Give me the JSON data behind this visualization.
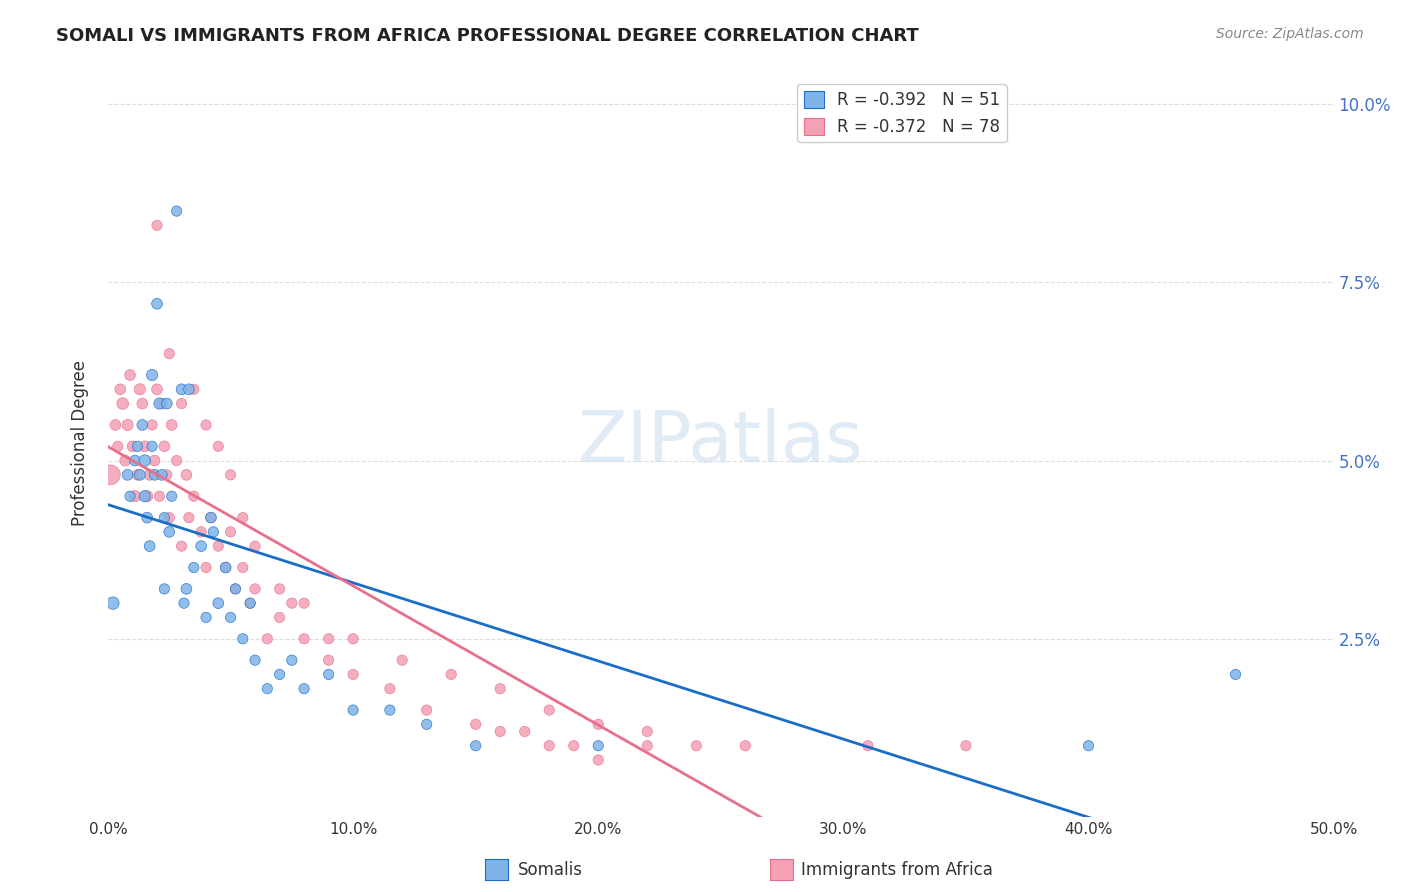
{
  "title": "SOMALI VS IMMIGRANTS FROM AFRICA PROFESSIONAL DEGREE CORRELATION CHART",
  "source": "Source: ZipAtlas.com",
  "xlabel_ticks": [
    "0.0%",
    "10.0%",
    "20.0%",
    "30.0%",
    "40.0%",
    "50.0%"
  ],
  "xlabel_vals": [
    0.0,
    0.1,
    0.2,
    0.3,
    0.4,
    0.5
  ],
  "ylabel": "Professional Degree",
  "ylabel_right_ticks": [
    "10.0%",
    "7.5%",
    "5.0%",
    "2.5%"
  ],
  "ylabel_right_vals": [
    0.1,
    0.075,
    0.05,
    0.025
  ],
  "xlim": [
    0.0,
    0.5
  ],
  "ylim": [
    0.0,
    0.105
  ],
  "legend_blue_R": "-0.392",
  "legend_blue_N": "51",
  "legend_pink_R": "-0.372",
  "legend_pink_N": "78",
  "somali_color": "#7EB3E8",
  "africa_color": "#F4A0B5",
  "trendline_blue": "#1A6EC7",
  "trendline_pink": "#E8708A",
  "background_color": "#FFFFFF",
  "grid_color": "#DDDDDD",
  "somalis_x": [
    0.002,
    0.008,
    0.009,
    0.011,
    0.012,
    0.013,
    0.014,
    0.015,
    0.015,
    0.016,
    0.017,
    0.018,
    0.018,
    0.019,
    0.02,
    0.021,
    0.022,
    0.023,
    0.023,
    0.024,
    0.025,
    0.026,
    0.028,
    0.03,
    0.031,
    0.032,
    0.033,
    0.035,
    0.038,
    0.04,
    0.042,
    0.043,
    0.045,
    0.048,
    0.05,
    0.052,
    0.055,
    0.058,
    0.06,
    0.065,
    0.07,
    0.075,
    0.08,
    0.09,
    0.1,
    0.115,
    0.13,
    0.15,
    0.2,
    0.4,
    0.46
  ],
  "somalis_y": [
    0.03,
    0.048,
    0.045,
    0.05,
    0.052,
    0.048,
    0.055,
    0.05,
    0.045,
    0.042,
    0.038,
    0.062,
    0.052,
    0.048,
    0.072,
    0.058,
    0.048,
    0.032,
    0.042,
    0.058,
    0.04,
    0.045,
    0.085,
    0.06,
    0.03,
    0.032,
    0.06,
    0.035,
    0.038,
    0.028,
    0.042,
    0.04,
    0.03,
    0.035,
    0.028,
    0.032,
    0.025,
    0.03,
    0.022,
    0.018,
    0.02,
    0.022,
    0.018,
    0.02,
    0.015,
    0.015,
    0.013,
    0.01,
    0.01,
    0.01,
    0.02
  ],
  "somalis_size": [
    80,
    60,
    55,
    60,
    55,
    60,
    60,
    70,
    65,
    60,
    60,
    65,
    55,
    60,
    60,
    65,
    60,
    55,
    55,
    60,
    60,
    55,
    55,
    60,
    55,
    60,
    60,
    55,
    60,
    55,
    60,
    55,
    60,
    60,
    55,
    55,
    55,
    55,
    55,
    55,
    55,
    55,
    55,
    55,
    55,
    55,
    55,
    55,
    55,
    55,
    55
  ],
  "africa_x": [
    0.001,
    0.003,
    0.004,
    0.005,
    0.006,
    0.007,
    0.008,
    0.009,
    0.01,
    0.011,
    0.012,
    0.013,
    0.014,
    0.015,
    0.016,
    0.017,
    0.018,
    0.019,
    0.02,
    0.021,
    0.022,
    0.023,
    0.024,
    0.025,
    0.026,
    0.028,
    0.03,
    0.032,
    0.033,
    0.035,
    0.038,
    0.04,
    0.042,
    0.045,
    0.048,
    0.05,
    0.052,
    0.055,
    0.058,
    0.06,
    0.065,
    0.07,
    0.075,
    0.08,
    0.09,
    0.1,
    0.115,
    0.13,
    0.15,
    0.16,
    0.17,
    0.18,
    0.19,
    0.2,
    0.22,
    0.24,
    0.26,
    0.31,
    0.35,
    0.02,
    0.025,
    0.03,
    0.035,
    0.04,
    0.045,
    0.05,
    0.055,
    0.06,
    0.07,
    0.08,
    0.09,
    0.1,
    0.12,
    0.14,
    0.16,
    0.18,
    0.2,
    0.22
  ],
  "africa_y": [
    0.048,
    0.055,
    0.052,
    0.06,
    0.058,
    0.05,
    0.055,
    0.062,
    0.052,
    0.045,
    0.048,
    0.06,
    0.058,
    0.052,
    0.045,
    0.048,
    0.055,
    0.05,
    0.06,
    0.045,
    0.058,
    0.052,
    0.048,
    0.042,
    0.055,
    0.05,
    0.038,
    0.048,
    0.042,
    0.045,
    0.04,
    0.035,
    0.042,
    0.038,
    0.035,
    0.04,
    0.032,
    0.035,
    0.03,
    0.032,
    0.025,
    0.028,
    0.03,
    0.025,
    0.022,
    0.02,
    0.018,
    0.015,
    0.013,
    0.012,
    0.012,
    0.01,
    0.01,
    0.008,
    0.01,
    0.01,
    0.01,
    0.01,
    0.01,
    0.083,
    0.065,
    0.058,
    0.06,
    0.055,
    0.052,
    0.048,
    0.042,
    0.038,
    0.032,
    0.03,
    0.025,
    0.025,
    0.022,
    0.02,
    0.018,
    0.015,
    0.013,
    0.012
  ],
  "africa_size": [
    200,
    60,
    55,
    60,
    70,
    60,
    65,
    60,
    60,
    65,
    60,
    65,
    60,
    60,
    65,
    60,
    55,
    60,
    60,
    55,
    55,
    60,
    55,
    55,
    60,
    55,
    55,
    60,
    55,
    55,
    55,
    55,
    55,
    55,
    55,
    55,
    55,
    55,
    55,
    55,
    55,
    55,
    55,
    55,
    55,
    55,
    55,
    55,
    55,
    55,
    55,
    55,
    55,
    55,
    55,
    55,
    55,
    55,
    55,
    55,
    55,
    55,
    55,
    55,
    55,
    55,
    55,
    55,
    55,
    55,
    55,
    55,
    55,
    55,
    55,
    55,
    55,
    55
  ]
}
